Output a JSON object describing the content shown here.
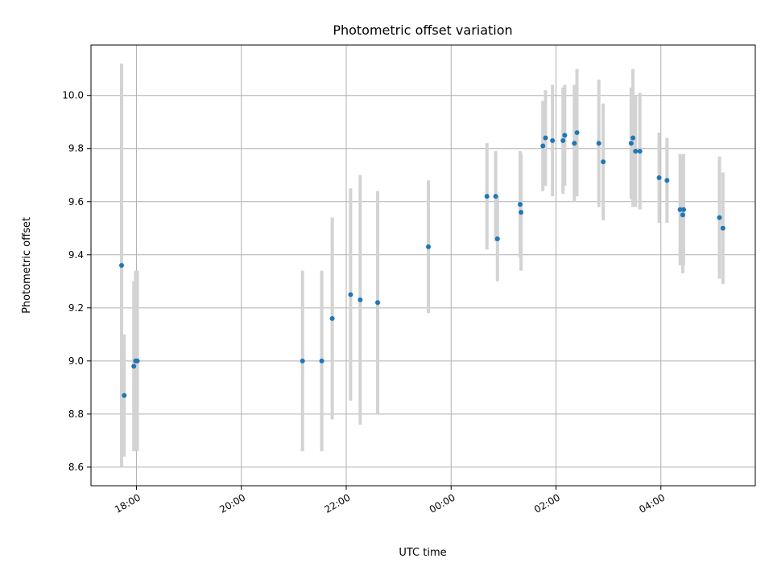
{
  "chart_data": {
    "type": "scatter",
    "title": "Photometric offset variation",
    "xlabel": "UTC time",
    "ylabel": "Photometric offset",
    "x_tick_labels": [
      "18:00",
      "20:00",
      "22:00",
      "00:00",
      "02:00",
      "04:00"
    ],
    "y_ticks": [
      8.6,
      8.8,
      9.0,
      9.2,
      9.4,
      9.6,
      9.8,
      10.0
    ],
    "y_tick_labels": [
      "8.6",
      "8.8",
      "9.0",
      "9.2",
      "9.4",
      "9.6",
      "9.8",
      "10.0"
    ],
    "xlim": [
      "17:08",
      "05:48"
    ],
    "ylim": [
      8.53,
      10.19
    ],
    "grid": true,
    "error_bars": true,
    "colors": {
      "point": "#1f77b4",
      "error_bar": "#d3d3d3",
      "grid": "#b0b0b0"
    },
    "points": [
      {
        "x": "17:43",
        "y": 9.36,
        "err": 0.76
      },
      {
        "x": "17:46",
        "y": 8.87,
        "err": 0.23
      },
      {
        "x": "17:57",
        "y": 8.98,
        "err": 0.32
      },
      {
        "x": "17:59",
        "y": 9.0,
        "err": 0.34
      },
      {
        "x": "18:01",
        "y": 9.0,
        "err": 0.34
      },
      {
        "x": "21:10",
        "y": 9.0,
        "err": 0.34
      },
      {
        "x": "21:32",
        "y": 9.0,
        "err": 0.34
      },
      {
        "x": "21:44",
        "y": 9.16,
        "err": 0.38
      },
      {
        "x": "22:05",
        "y": 9.25,
        "err": 0.4
      },
      {
        "x": "22:16",
        "y": 9.23,
        "err": 0.47
      },
      {
        "x": "22:36",
        "y": 9.22,
        "err": 0.42
      },
      {
        "x": "23:34",
        "y": 9.43,
        "err": 0.25
      },
      {
        "x": "00:41",
        "y": 9.62,
        "err": 0.2
      },
      {
        "x": "00:51",
        "y": 9.62,
        "err": 0.17
      },
      {
        "x": "00:53",
        "y": 9.46,
        "err": 0.16
      },
      {
        "x": "01:19",
        "y": 9.59,
        "err": 0.2
      },
      {
        "x": "01:20",
        "y": 9.56,
        "err": 0.22
      },
      {
        "x": "01:45",
        "y": 9.81,
        "err": 0.17
      },
      {
        "x": "01:48",
        "y": 9.84,
        "err": 0.18
      },
      {
        "x": "01:56",
        "y": 9.83,
        "err": 0.21
      },
      {
        "x": "02:08",
        "y": 9.83,
        "err": 0.2
      },
      {
        "x": "02:10",
        "y": 9.85,
        "err": 0.19
      },
      {
        "x": "02:21",
        "y": 9.82,
        "err": 0.22
      },
      {
        "x": "02:24",
        "y": 9.86,
        "err": 0.24
      },
      {
        "x": "02:49",
        "y": 9.82,
        "err": 0.24
      },
      {
        "x": "02:54",
        "y": 9.75,
        "err": 0.22
      },
      {
        "x": "03:26",
        "y": 9.82,
        "err": 0.21
      },
      {
        "x": "03:28",
        "y": 9.84,
        "err": 0.26
      },
      {
        "x": "03:31",
        "y": 9.79,
        "err": 0.21
      },
      {
        "x": "03:36",
        "y": 9.79,
        "err": 0.22
      },
      {
        "x": "03:58",
        "y": 9.69,
        "err": 0.17
      },
      {
        "x": "04:07",
        "y": 9.68,
        "err": 0.16
      },
      {
        "x": "04:22",
        "y": 9.57,
        "err": 0.21
      },
      {
        "x": "04:25",
        "y": 9.55,
        "err": 0.22
      },
      {
        "x": "04:26",
        "y": 9.57,
        "err": 0.21
      },
      {
        "x": "05:07",
        "y": 9.54,
        "err": 0.23
      },
      {
        "x": "05:11",
        "y": 9.5,
        "err": 0.21
      }
    ]
  }
}
